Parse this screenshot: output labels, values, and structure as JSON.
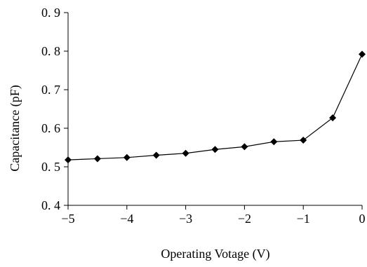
{
  "chart_data": {
    "type": "line",
    "title": "",
    "xlabel": "Operating Votage (V)",
    "ylabel": "Capacitance (pF)",
    "xlim": [
      -5,
      0
    ],
    "ylim": [
      0.4,
      0.9
    ],
    "x_ticks": [
      "−5",
      "−4",
      "−3",
      "−2",
      "−1",
      "0"
    ],
    "x_tick_values": [
      -5,
      -4,
      -3,
      -2,
      -1,
      0
    ],
    "y_ticks": [
      "0. 4",
      "0. 5",
      "0. 6",
      "0. 7",
      "0. 8",
      "0. 9"
    ],
    "y_tick_values": [
      0.4,
      0.5,
      0.6,
      0.7,
      0.8,
      0.9
    ],
    "grid": false,
    "legend": "none",
    "series": [
      {
        "marker": "diamond",
        "color": "#000000",
        "x": [
          -5,
          -4.5,
          -4,
          -3.5,
          -3,
          -2.5,
          -2,
          -1.5,
          -1,
          -0.5,
          0
        ],
        "y": [
          0.518,
          0.521,
          0.524,
          0.53,
          0.535,
          0.545,
          0.552,
          0.565,
          0.569,
          0.627,
          0.792
        ]
      }
    ]
  }
}
